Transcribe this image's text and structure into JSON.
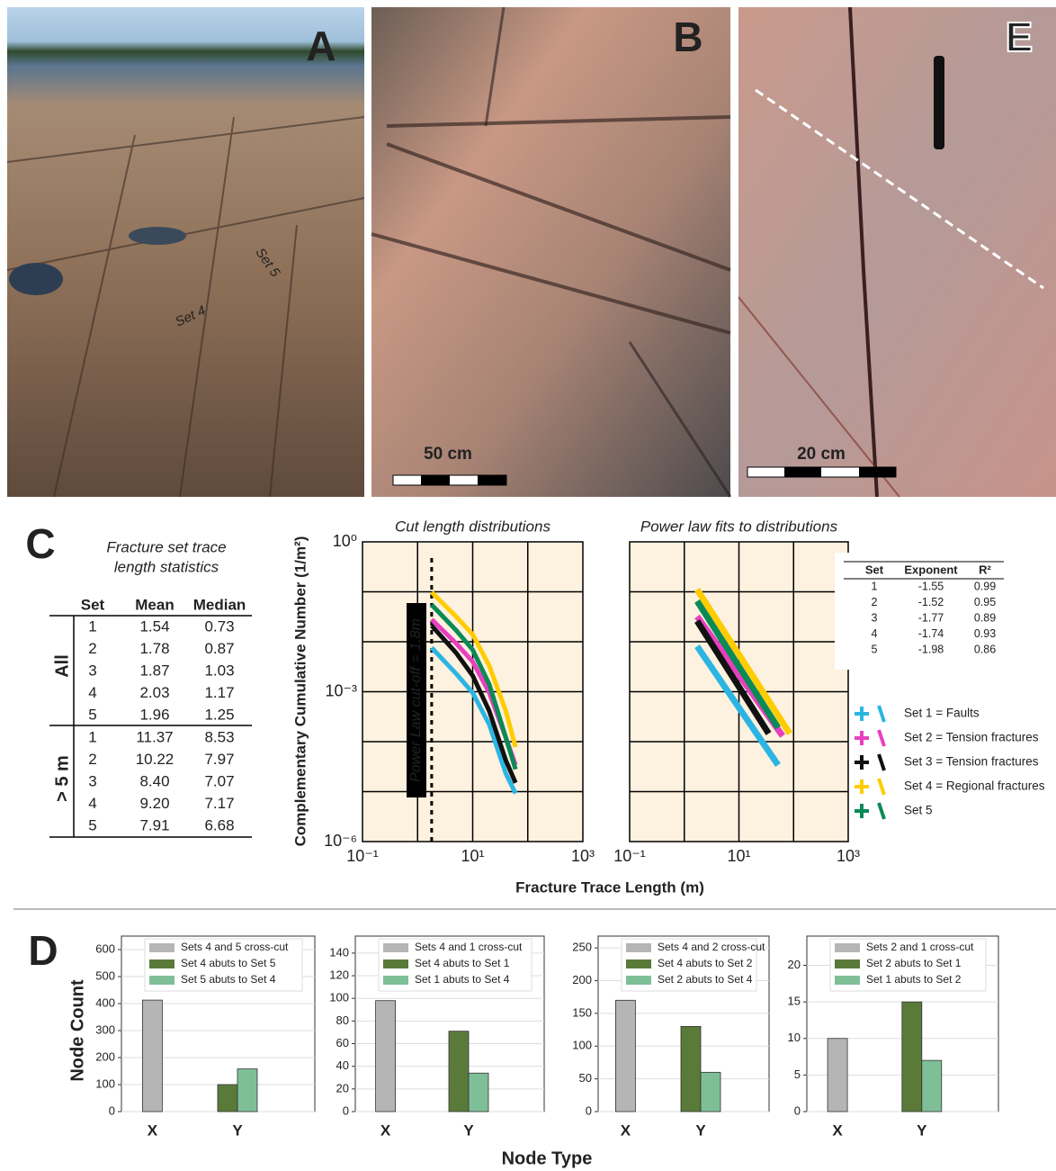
{
  "photos": [
    {
      "label": "A",
      "annotations": [
        "Set 5",
        "Set 4"
      ]
    },
    {
      "label": "B",
      "scale": "50 cm"
    },
    {
      "label": "E",
      "scale": "20 cm"
    }
  ],
  "panel_c": {
    "label": "C",
    "table_title": [
      "Fracture set trace",
      "length statistics"
    ],
    "columns": [
      "Set",
      "Mean",
      "Median"
    ],
    "groups": [
      {
        "name": "All",
        "rows": [
          [
            "1",
            "1.54",
            "0.73"
          ],
          [
            "2",
            "1.78",
            "0.87"
          ],
          [
            "3",
            "1.87",
            "1.03"
          ],
          [
            "4",
            "2.03",
            "1.17"
          ],
          [
            "5",
            "1.96",
            "1.25"
          ]
        ]
      },
      {
        "name": "> 5 m",
        "rows": [
          [
            "1",
            "11.37",
            "8.53"
          ],
          [
            "2",
            "10.22",
            "7.97"
          ],
          [
            "3",
            "8.40",
            "7.07"
          ],
          [
            "4",
            "9.20",
            "7.17"
          ],
          [
            "5",
            "7.91",
            "6.68"
          ]
        ]
      }
    ]
  },
  "fit_table": {
    "columns": [
      "Set",
      "Exponent",
      "R²"
    ],
    "rows": [
      [
        "1",
        "-1.55",
        "0.99"
      ],
      [
        "2",
        "-1.52",
        "0.95"
      ],
      [
        "3",
        "-1.77",
        "0.89"
      ],
      [
        "4",
        "-1.74",
        "0.93"
      ],
      [
        "5",
        "-1.98",
        "0.86"
      ]
    ]
  },
  "legend": [
    {
      "label": "Set 1 = Faults",
      "color": "#2bb5e3"
    },
    {
      "label": "Set 2 = Tension fractures",
      "color": "#e83fbf"
    },
    {
      "label": "Set 3 = Tension fractures",
      "color": "#111111"
    },
    {
      "label": "Set 4 = Regional fractures",
      "color": "#ffcc00"
    },
    {
      "label": "Set 5",
      "color": "#0a8a55"
    }
  ],
  "panel_d": {
    "label": "D",
    "ylabel": "Node Count",
    "xlabel": "Node Type"
  },
  "chart_data": [
    {
      "type": "line",
      "title": "Cut length distributions",
      "ylabel": "Complementary Cumulative Number (1/m²)",
      "xlabel": "Fracture Trace Length (m)",
      "log_x": true,
      "log_y": true,
      "xlim": [
        0.1,
        1000
      ],
      "ylim": [
        1e-06,
        1
      ],
      "xticks": [
        {
          "value": 0.1,
          "label": "10⁻¹"
        },
        {
          "value": 10,
          "label": "10¹"
        },
        {
          "value": 1000,
          "label": "10³"
        }
      ],
      "yticks": [
        {
          "value": 1,
          "label": "10⁰"
        },
        {
          "value": 0.001,
          "label": "10⁻³"
        },
        {
          "value": 1e-06,
          "label": "10⁻⁶"
        }
      ],
      "xgrid": [
        1,
        10,
        100
      ],
      "ygrid": [
        0.1,
        0.01,
        0.001,
        0.0001,
        1e-05
      ],
      "annotation": "Power Law cut-off = 1.8m",
      "cutoff": 1.8,
      "x": [
        1.8,
        5,
        10,
        20,
        40,
        60
      ],
      "series": [
        {
          "color": "#2bb5e3",
          "values": [
            0.0076,
            0.0023,
            0.00095,
            0.00022,
            2.3e-05,
            9.2e-06
          ]
        },
        {
          "color": "#e83fbf",
          "values": [
            0.028,
            0.0093,
            0.004,
            0.00095,
            0.00012,
            3.4e-05
          ]
        },
        {
          "color": "#111111",
          "values": [
            0.021,
            0.006,
            0.0021,
            0.00041,
            4.2e-05,
            1.5e-05
          ]
        },
        {
          "color": "#ffcc00",
          "values": [
            0.098,
            0.032,
            0.014,
            0.0033,
            0.00041,
            7.8e-05
          ]
        },
        {
          "color": "#0a8a55",
          "values": [
            0.055,
            0.017,
            0.0069,
            0.0014,
            0.00012,
            2.8e-05
          ]
        }
      ]
    },
    {
      "type": "line",
      "title": "Power law fits to distributions",
      "log_x": true,
      "log_y": true,
      "xlim": [
        0.1,
        1000
      ],
      "ylim": [
        1e-06,
        1
      ],
      "xticks": [
        {
          "value": 0.1,
          "label": "10⁻¹"
        },
        {
          "value": 10,
          "label": "10¹"
        },
        {
          "value": 1000,
          "label": "10³"
        }
      ],
      "xgrid": [
        1,
        10,
        100
      ],
      "ygrid": [
        0.1,
        0.01,
        0.001,
        0.0001,
        1e-05
      ],
      "series": [
        {
          "color": "#2bb5e3",
          "x": [
            1.72,
            52
          ],
          "values": [
            0.0081,
            3.4e-05
          ]
        },
        {
          "color": "#e83fbf",
          "x": [
            1.72,
            63
          ],
          "values": [
            0.032,
            0.00013
          ]
        },
        {
          "color": "#111111",
          "x": [
            1.72,
            35
          ],
          "values": [
            0.026,
            0.000145
          ]
        },
        {
          "color": "#ffcc00",
          "x": [
            1.72,
            85
          ],
          "values": [
            0.111,
            0.000145
          ]
        },
        {
          "color": "#0a8a55",
          "x": [
            1.72,
            52
          ],
          "values": [
            0.065,
            0.00019
          ]
        }
      ]
    },
    {
      "type": "bar",
      "categories": [
        "X",
        "Y"
      ],
      "ylim": [
        0,
        650
      ],
      "yticks": [
        0,
        100,
        200,
        300,
        400,
        500,
        600
      ],
      "series": [
        {
          "name": "Sets 4 and 5 cross-cut",
          "color": "#b5b5b5",
          "values": [
            413,
            null
          ]
        },
        {
          "name": "Set 4 abuts to Set 5",
          "color": "#5a7a3a",
          "values": [
            null,
            100
          ]
        },
        {
          "name": "Set 5 abuts to Set 4",
          "color": "#7fbf97",
          "values": [
            null,
            158
          ]
        }
      ]
    },
    {
      "type": "bar",
      "categories": [
        "X",
        "Y"
      ],
      "ylim": [
        0,
        155
      ],
      "yticks": [
        0,
        20,
        40,
        60,
        80,
        100,
        120,
        140
      ],
      "series": [
        {
          "name": "Sets 4 and 1 cross-cut",
          "color": "#b5b5b5",
          "values": [
            98,
            null
          ]
        },
        {
          "name": "Set 4 abuts to Set 1",
          "color": "#5a7a3a",
          "values": [
            null,
            71
          ]
        },
        {
          "name": "Set 1 abuts to Set 4",
          "color": "#7fbf97",
          "values": [
            null,
            34
          ]
        }
      ]
    },
    {
      "type": "bar",
      "categories": [
        "X",
        "Y"
      ],
      "ylim": [
        0,
        268
      ],
      "yticks": [
        0,
        50,
        100,
        150,
        200,
        250
      ],
      "series": [
        {
          "name": "Sets 4 and 2 cross-cut",
          "color": "#b5b5b5",
          "values": [
            170,
            null
          ]
        },
        {
          "name": "Set 4 abuts to Set 2",
          "color": "#5a7a3a",
          "values": [
            null,
            130
          ]
        },
        {
          "name": "Set 2 abuts to Set 4",
          "color": "#7fbf97",
          "values": [
            null,
            60
          ]
        }
      ]
    },
    {
      "type": "bar",
      "categories": [
        "X",
        "Y"
      ],
      "ylim": [
        0,
        24
      ],
      "yticks": [
        0,
        5,
        10,
        15,
        20
      ],
      "series": [
        {
          "name": "Sets 2 and 1 cross-cut",
          "color": "#b5b5b5",
          "values": [
            10,
            null
          ]
        },
        {
          "name": "Set 2 abuts to Set 1",
          "color": "#5a7a3a",
          "values": [
            null,
            15
          ]
        },
        {
          "name": "Set 1 abuts to Set 2",
          "color": "#7fbf97",
          "values": [
            null,
            7
          ]
        }
      ]
    }
  ]
}
